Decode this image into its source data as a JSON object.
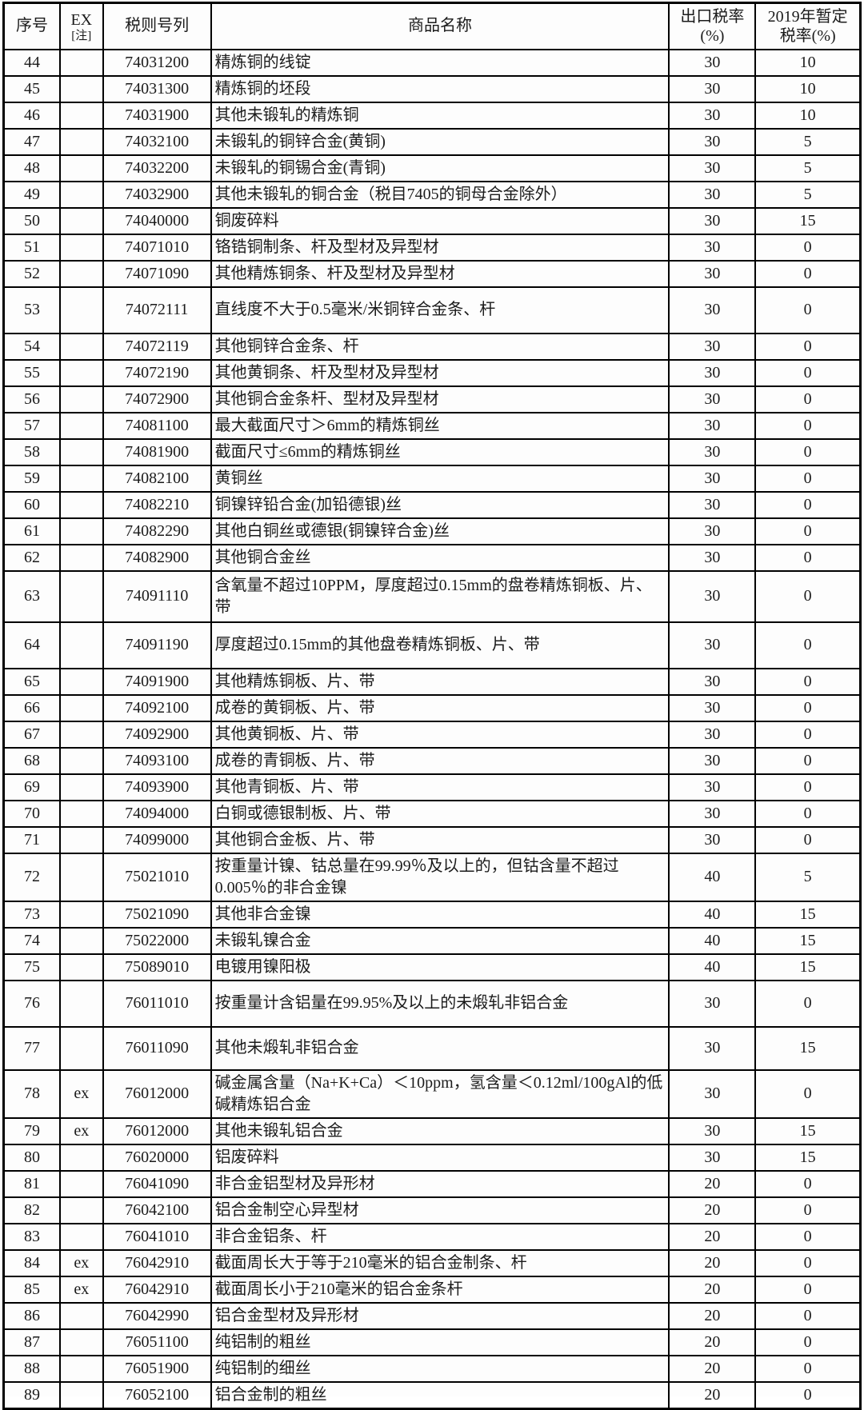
{
  "table": {
    "headers": {
      "serial": "序号",
      "ex_line1": "EX",
      "ex_line2": "[注]",
      "code": "税则号列",
      "name": "商品名称",
      "export_rate_line1": "出口税率",
      "export_rate_line2": "(%)",
      "rate2019_line1": "2019年暂定",
      "rate2019_line2": "税率(%)"
    },
    "rows": [
      {
        "no": "44",
        "ex": "",
        "code": "74031200",
        "name": "精炼铜的线锭",
        "rate": "30",
        "rate2019": "10"
      },
      {
        "no": "45",
        "ex": "",
        "code": "74031300",
        "name": "精炼铜的坯段",
        "rate": "30",
        "rate2019": "10"
      },
      {
        "no": "46",
        "ex": "",
        "code": "74031900",
        "name": "其他未锻轧的精炼铜",
        "rate": "30",
        "rate2019": "10"
      },
      {
        "no": "47",
        "ex": "",
        "code": "74032100",
        "name": "未锻轧的铜锌合金(黄铜)",
        "rate": "30",
        "rate2019": "5"
      },
      {
        "no": "48",
        "ex": "",
        "code": "74032200",
        "name": "未锻轧的铜锡合金(青铜)",
        "rate": "30",
        "rate2019": "5"
      },
      {
        "no": "49",
        "ex": "",
        "code": "74032900",
        "name": "其他未锻轧的铜合金（税目7405的铜母合金除外）",
        "rate": "30",
        "rate2019": "5"
      },
      {
        "no": "50",
        "ex": "",
        "code": "74040000",
        "name": "铜废碎料",
        "rate": "30",
        "rate2019": "15"
      },
      {
        "no": "51",
        "ex": "",
        "code": "74071010",
        "name": "铬锆铜制条、杆及型材及异型材",
        "rate": "30",
        "rate2019": "0"
      },
      {
        "no": "52",
        "ex": "",
        "code": "74071090",
        "name": "其他精炼铜条、杆及型材及异型材",
        "rate": "30",
        "rate2019": "0"
      },
      {
        "no": "53",
        "ex": "",
        "code": "74072111",
        "name": "直线度不大于0.5毫米/米铜锌合金条、杆",
        "rate": "30",
        "rate2019": "0"
      },
      {
        "no": "54",
        "ex": "",
        "code": "74072119",
        "name": "其他铜锌合金条、杆",
        "rate": "30",
        "rate2019": "0"
      },
      {
        "no": "55",
        "ex": "",
        "code": "74072190",
        "name": "其他黄铜条、杆及型材及异型材",
        "rate": "30",
        "rate2019": "0"
      },
      {
        "no": "56",
        "ex": "",
        "code": "74072900",
        "name": "其他铜合金条杆、型材及异型材",
        "rate": "30",
        "rate2019": "0"
      },
      {
        "no": "57",
        "ex": "",
        "code": "74081100",
        "name": "最大截面尺寸＞6mm的精炼铜丝",
        "rate": "30",
        "rate2019": "0"
      },
      {
        "no": "58",
        "ex": "",
        "code": "74081900",
        "name": "截面尺寸≤6mm的精炼铜丝",
        "rate": "30",
        "rate2019": "0"
      },
      {
        "no": "59",
        "ex": "",
        "code": "74082100",
        "name": "黄铜丝",
        "rate": "30",
        "rate2019": "0"
      },
      {
        "no": "60",
        "ex": "",
        "code": "74082210",
        "name": "铜镍锌铅合金(加铅德银)丝",
        "rate": "30",
        "rate2019": "0"
      },
      {
        "no": "61",
        "ex": "",
        "code": "74082290",
        "name": "其他白铜丝或德银(铜镍锌合金)丝",
        "rate": "30",
        "rate2019": "0"
      },
      {
        "no": "62",
        "ex": "",
        "code": "74082900",
        "name": "其他铜合金丝",
        "rate": "30",
        "rate2019": "0"
      },
      {
        "no": "63",
        "ex": "",
        "code": "74091110",
        "name": "含氧量不超过10PPM，厚度超过0.15mm的盘卷精炼铜板、片、带",
        "rate": "30",
        "rate2019": "0"
      },
      {
        "no": "64",
        "ex": "",
        "code": "74091190",
        "name": "厚度超过0.15mm的其他盘卷精炼铜板、片、带",
        "rate": "30",
        "rate2019": "0"
      },
      {
        "no": "65",
        "ex": "",
        "code": "74091900",
        "name": "其他精炼铜板、片、带",
        "rate": "30",
        "rate2019": "0"
      },
      {
        "no": "66",
        "ex": "",
        "code": "74092100",
        "name": "成卷的黄铜板、片、带",
        "rate": "30",
        "rate2019": "0"
      },
      {
        "no": "67",
        "ex": "",
        "code": "74092900",
        "name": "其他黄铜板、片、带",
        "rate": "30",
        "rate2019": "0"
      },
      {
        "no": "68",
        "ex": "",
        "code": "74093100",
        "name": "成卷的青铜板、片、带",
        "rate": "30",
        "rate2019": "0"
      },
      {
        "no": "69",
        "ex": "",
        "code": "74093900",
        "name": "其他青铜板、片、带",
        "rate": "30",
        "rate2019": "0"
      },
      {
        "no": "70",
        "ex": "",
        "code": "74094000",
        "name": "白铜或德银制板、片、带",
        "rate": "30",
        "rate2019": "0"
      },
      {
        "no": "71",
        "ex": "",
        "code": "74099000",
        "name": "其他铜合金板、片、带",
        "rate": "30",
        "rate2019": "0"
      },
      {
        "no": "72",
        "ex": "",
        "code": "75021010",
        "name": "按重量计镍、钴总量在99.99％及以上的，但钴含量不超过0.005％的非合金镍",
        "rate": "40",
        "rate2019": "5"
      },
      {
        "no": "73",
        "ex": "",
        "code": "75021090",
        "name": "其他非合金镍",
        "rate": "40",
        "rate2019": "15"
      },
      {
        "no": "74",
        "ex": "",
        "code": "75022000",
        "name": "未锻轧镍合金",
        "rate": "40",
        "rate2019": "15"
      },
      {
        "no": "75",
        "ex": "",
        "code": "75089010",
        "name": "电镀用镍阳极",
        "rate": "40",
        "rate2019": "15"
      },
      {
        "no": "76",
        "ex": "",
        "code": "76011010",
        "name": "按重量计含铝量在99.95%及以上的未煅轧非铝合金",
        "rate": "30",
        "rate2019": "0"
      },
      {
        "no": "77",
        "ex": "",
        "code": "76011090",
        "name": "其他未煅轧非铝合金",
        "rate": "30",
        "rate2019": "15"
      },
      {
        "no": "78",
        "ex": "ex",
        "code": "76012000",
        "name": "碱金属含量（Na+K+Ca）＜10ppm，氢含量＜0.12ml/100gAl的低碱精炼铝合金",
        "rate": "30",
        "rate2019": "0"
      },
      {
        "no": "79",
        "ex": "ex",
        "code": "76012000",
        "name": "其他未锻轧铝合金",
        "rate": "30",
        "rate2019": "15"
      },
      {
        "no": "80",
        "ex": "",
        "code": "76020000",
        "name": "铝废碎料",
        "rate": "30",
        "rate2019": "15"
      },
      {
        "no": "81",
        "ex": "",
        "code": "76041090",
        "name": "非合金铝型材及异形材",
        "rate": "20",
        "rate2019": "0"
      },
      {
        "no": "82",
        "ex": "",
        "code": "76042100",
        "name": "铝合金制空心异型材",
        "rate": "20",
        "rate2019": "0"
      },
      {
        "no": "83",
        "ex": "",
        "code": "76041010",
        "name": "非合金铝条、杆",
        "rate": "20",
        "rate2019": "0"
      },
      {
        "no": "84",
        "ex": "ex",
        "code": "76042910",
        "name": "截面周长大于等于210毫米的铝合金制条、杆",
        "rate": "20",
        "rate2019": "0"
      },
      {
        "no": "85",
        "ex": "ex",
        "code": "76042910",
        "name": "截面周长小于210毫米的铝合金条杆",
        "rate": "20",
        "rate2019": "0"
      },
      {
        "no": "86",
        "ex": "",
        "code": "76042990",
        "name": "铝合金型材及异形材",
        "rate": "20",
        "rate2019": "0"
      },
      {
        "no": "87",
        "ex": "",
        "code": "76051100",
        "name": "纯铝制的粗丝",
        "rate": "20",
        "rate2019": "0"
      },
      {
        "no": "88",
        "ex": "",
        "code": "76051900",
        "name": "纯铝制的细丝",
        "rate": "20",
        "rate2019": "0"
      },
      {
        "no": "89",
        "ex": "",
        "code": "76052100",
        "name": "铝合金制的粗丝",
        "rate": "20",
        "rate2019": "0"
      }
    ]
  }
}
